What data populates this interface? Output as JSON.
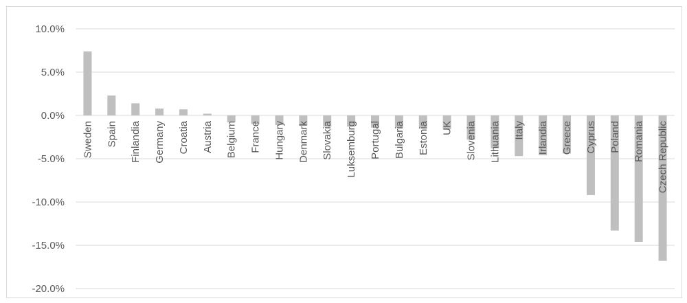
{
  "chart_data": {
    "type": "bar",
    "title": "",
    "xlabel": "",
    "ylabel": "",
    "categories": [
      "Sweden",
      "Spain",
      "Finlandia",
      "Germany",
      "Croatia",
      "Austria",
      "Belgium",
      "France",
      "Hungary",
      "Denmark",
      "Slovakia",
      "Luksemburg",
      "Portugal",
      "Bulgaria",
      "Estonia",
      "UK",
      "Slovenia",
      "Lithuania",
      "Italy",
      "Irlandia",
      "Greece",
      "Cyprus",
      "Poland",
      "Romania",
      "Czech Republic"
    ],
    "values": [
      7.4,
      2.3,
      1.4,
      0.8,
      0.7,
      0.2,
      -0.8,
      -1.0,
      -1.1,
      -1.2,
      -1.3,
      -1.3,
      -1.4,
      -1.4,
      -1.5,
      -1.6,
      -2.8,
      -3.8,
      -4.7,
      -4.6,
      -4.4,
      -9.2,
      -13.3,
      -14.6,
      -16.8
    ],
    "ylim": [
      -20,
      10
    ],
    "yticks": [
      10,
      5,
      0,
      -5,
      -10,
      -15,
      -20
    ],
    "ytick_labels": [
      "10.0%",
      "5.0%",
      "0.0%",
      "-5.0%",
      "-10.0%",
      "-15.0%",
      "-20.0%"
    ],
    "grid": true,
    "bar_color": "#bfbfbf",
    "grid_color": "#d9d9d9",
    "text_color": "#595959"
  }
}
